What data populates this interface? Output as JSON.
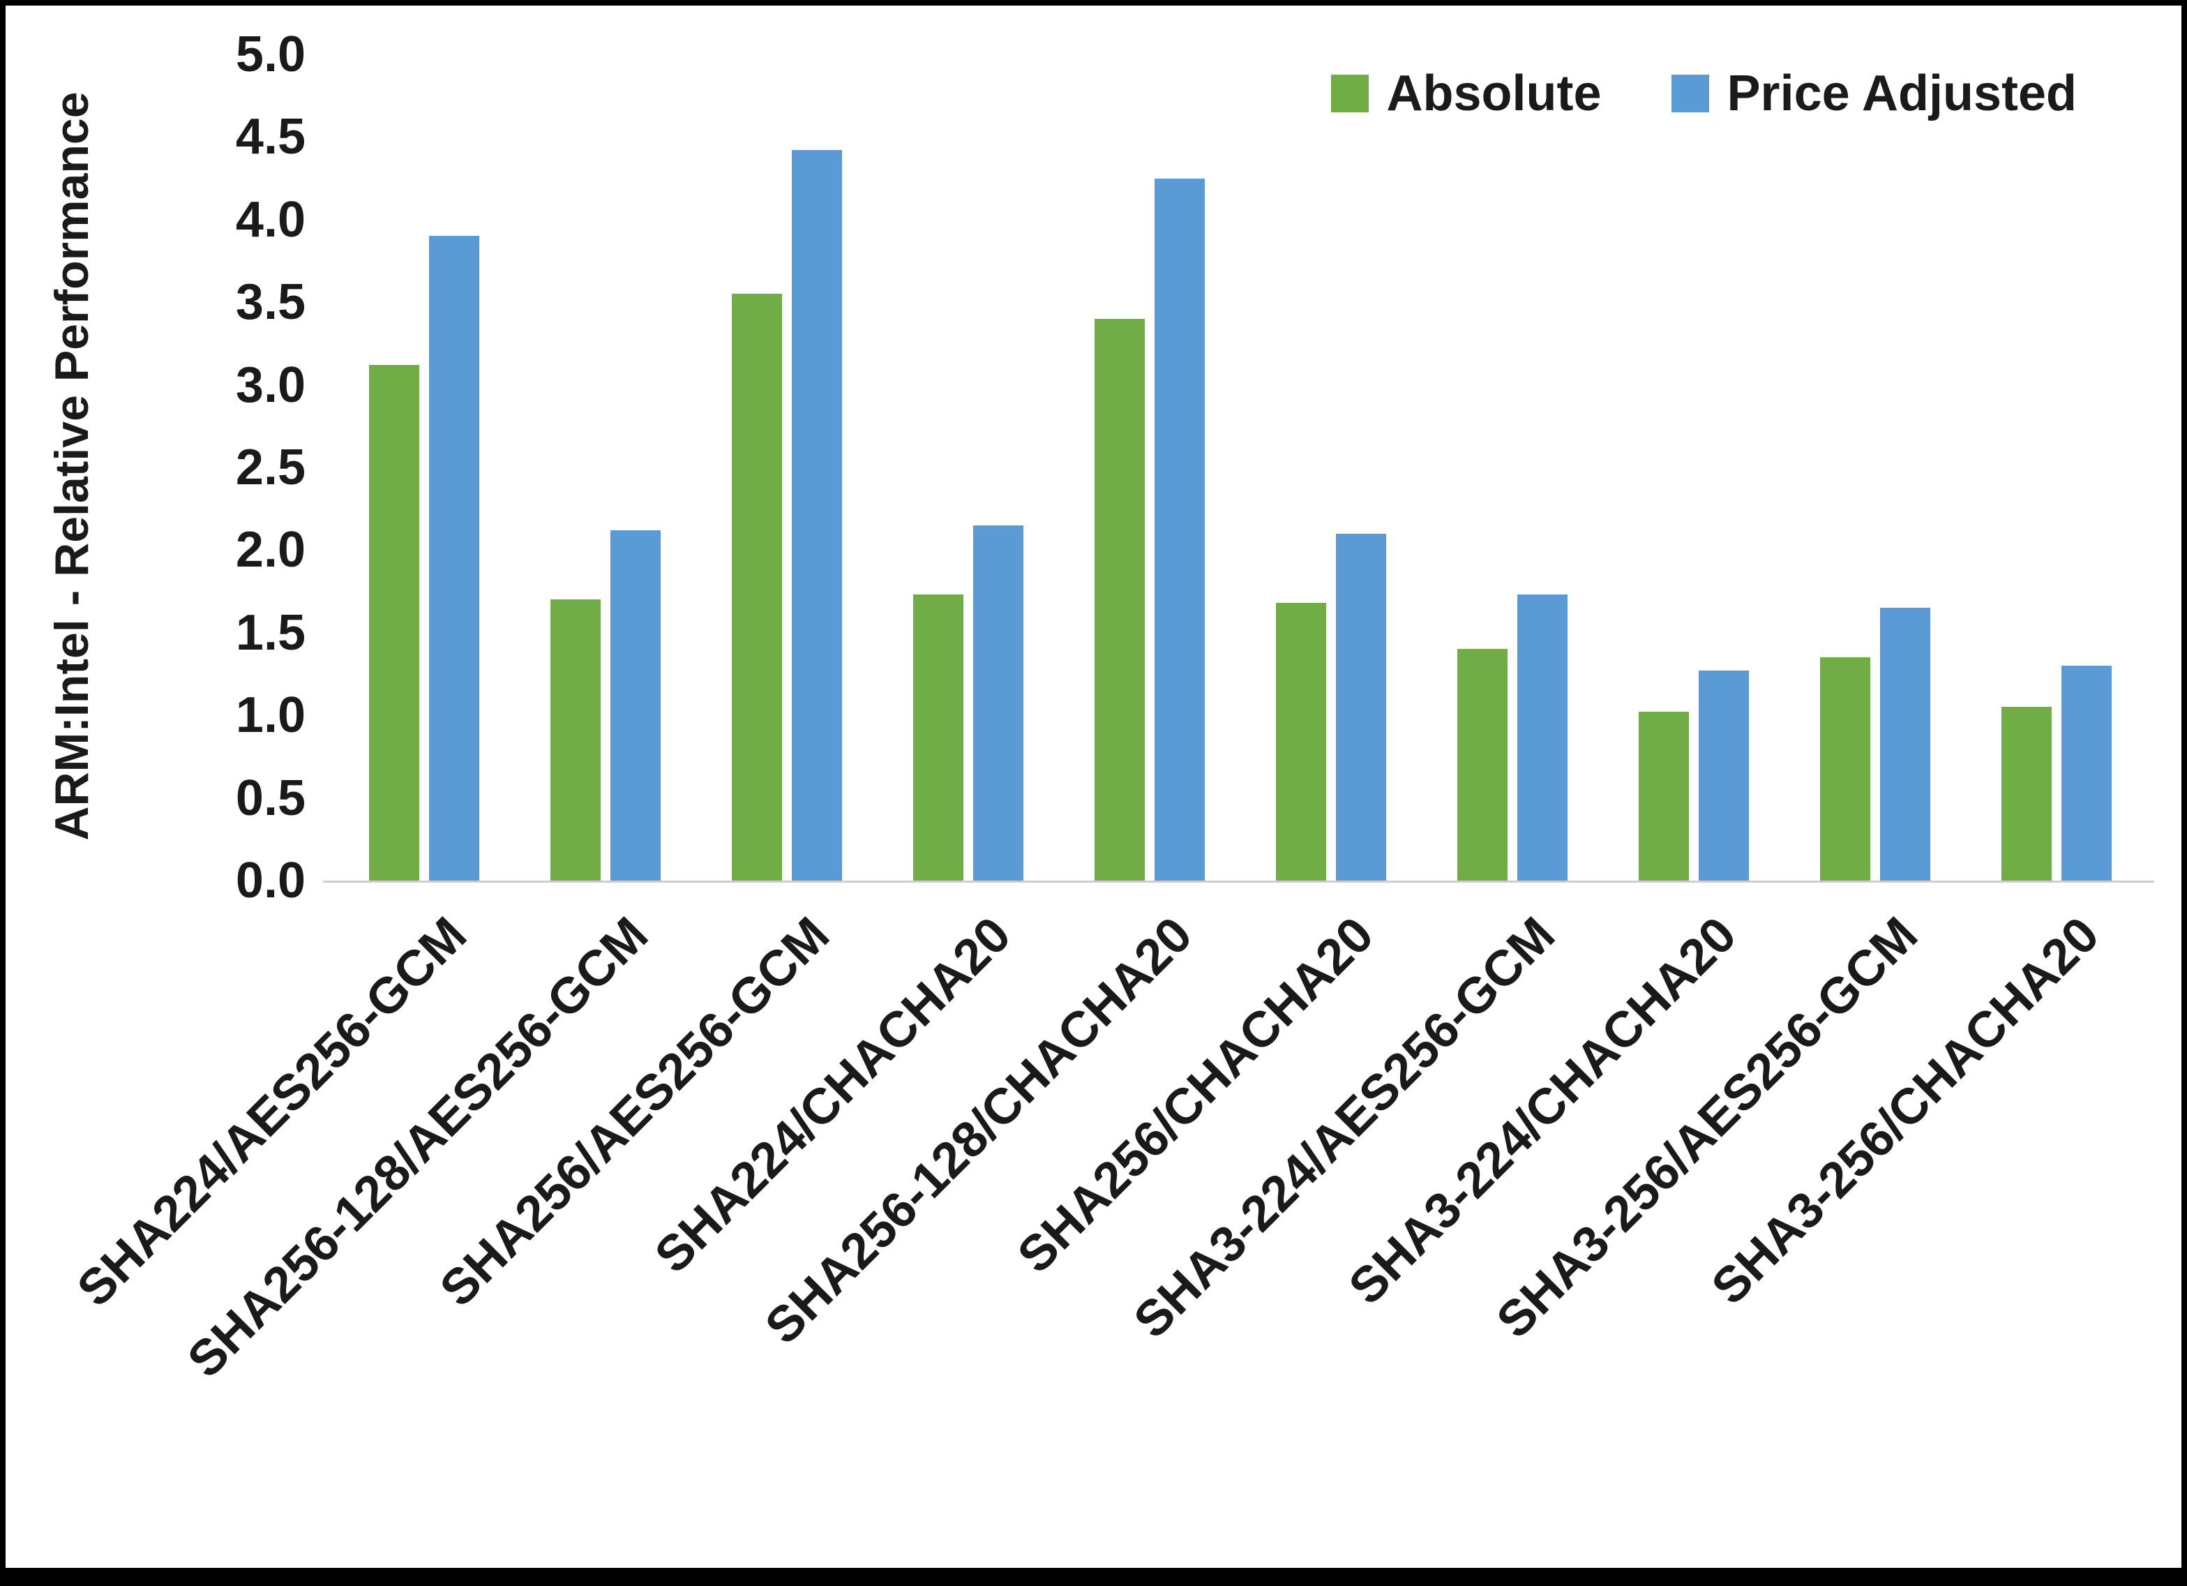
{
  "chart_data": {
    "type": "bar",
    "title": "",
    "xlabel": "",
    "ylabel": "ARM:Intel - Relative Performance",
    "ylim": [
      0,
      5
    ],
    "ytick_step": 0.5,
    "ytick_labels": [
      "0.0",
      "0.5",
      "1.0",
      "1.5",
      "2.0",
      "2.5",
      "3.0",
      "3.5",
      "4.0",
      "4.5",
      "5.0"
    ],
    "grid": "baseline-only",
    "legend_position": "top-right",
    "categories": [
      "SHA224/AES256-GCM",
      "SHA256-128/AES256-GCM",
      "SHA256/AES256-GCM",
      "SHA224/CHACHA20",
      "SHA256-128/CHACHA20",
      "SHA256/CHACHA20",
      "SHA3-224/AES256-GCM",
      "SHA3-224/CHACHA20",
      "SHA3-256/AES256-GCM",
      "SHA3-256/CHACHA20"
    ],
    "series": [
      {
        "name": "Absolute",
        "color": "#70AD47",
        "values": [
          3.12,
          1.7,
          3.55,
          1.73,
          3.4,
          1.68,
          1.4,
          1.02,
          1.35,
          1.05
        ]
      },
      {
        "name": "Price Adjusted",
        "color": "#5B9BD5",
        "values": [
          3.9,
          2.12,
          4.42,
          2.15,
          4.25,
          2.1,
          1.73,
          1.27,
          1.65,
          1.3
        ]
      }
    ],
    "axis_line_color": "#cdcdcd",
    "border_color": "#000000"
  }
}
